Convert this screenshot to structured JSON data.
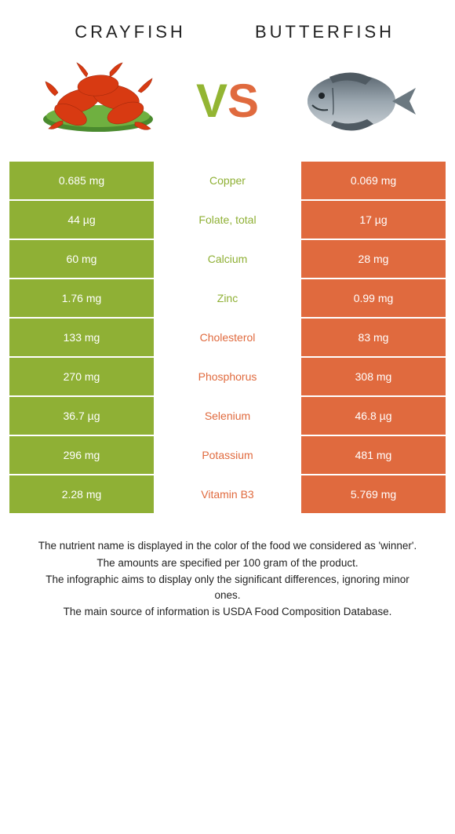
{
  "header": {
    "left_title": "Crayfish",
    "right_title": "Butterfish",
    "vs_left_char": "V",
    "vs_right_char": "S"
  },
  "colors": {
    "left": "#8fb035",
    "right": "#e06a3e",
    "left_text": "#ffffff",
    "right_text": "#ffffff",
    "crayfish_red": "#d83a12",
    "crayfish_leaf": "#4a8a2e",
    "fish_body": "#7f8b94",
    "fish_dark": "#3f4a52"
  },
  "rows": [
    {
      "left": "0.685 mg",
      "label": "Copper",
      "right": "0.069 mg",
      "winner": "left"
    },
    {
      "left": "44 µg",
      "label": "Folate, total",
      "right": "17 µg",
      "winner": "left"
    },
    {
      "left": "60 mg",
      "label": "Calcium",
      "right": "28 mg",
      "winner": "left"
    },
    {
      "left": "1.76 mg",
      "label": "Zinc",
      "right": "0.99 mg",
      "winner": "left"
    },
    {
      "left": "133 mg",
      "label": "Cholesterol",
      "right": "83 mg",
      "winner": "right"
    },
    {
      "left": "270 mg",
      "label": "Phosphorus",
      "right": "308 mg",
      "winner": "right"
    },
    {
      "left": "36.7 µg",
      "label": "Selenium",
      "right": "46.8 µg",
      "winner": "right"
    },
    {
      "left": "296 mg",
      "label": "Potassium",
      "right": "481 mg",
      "winner": "right"
    },
    {
      "left": "2.28 mg",
      "label": "Vitamin B3",
      "right": "5.769 mg",
      "winner": "right"
    }
  ],
  "footer": {
    "line1": "The nutrient name is displayed in the color of the food we considered as 'winner'.",
    "line2": "The amounts are specified per 100 gram of the product.",
    "line3": "The infographic aims to display only the significant differences, ignoring minor ones.",
    "line4": "The main source of information is USDA Food Composition Database."
  }
}
